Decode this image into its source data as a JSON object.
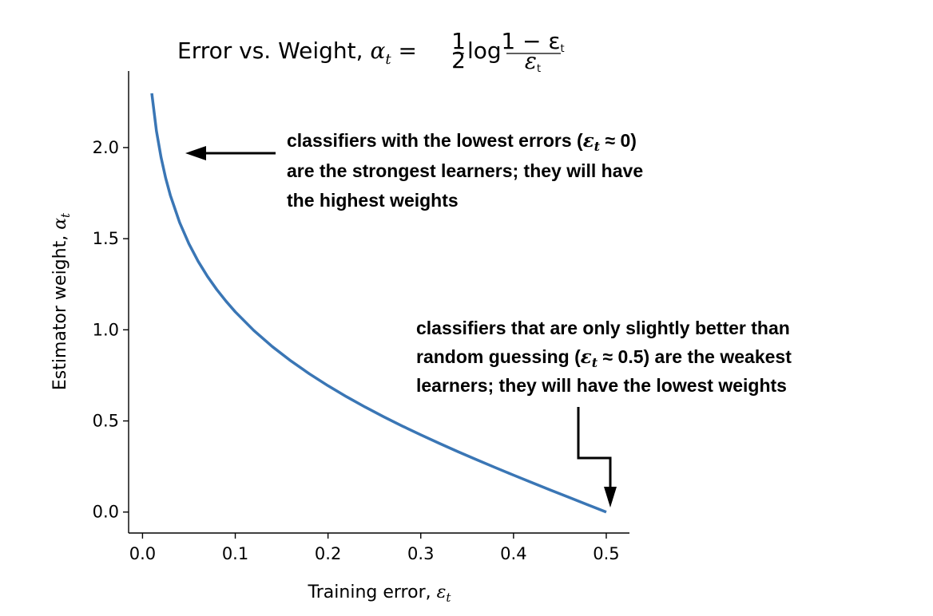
{
  "chart_data": {
    "type": "line",
    "title": {
      "prefix": "Error vs. Weight, ",
      "lhs_symbol": "α",
      "lhs_sub": "t",
      "equals": " = ",
      "half_num": "1",
      "half_den": "2",
      "log": "log",
      "frac_num": "1 − ε",
      "frac_num_sub": "t",
      "frac_den": "ε",
      "frac_den_sub": "t"
    },
    "xlabel": {
      "text": "Training error, ",
      "symbol": "ε",
      "sub": "t"
    },
    "ylabel": {
      "text": "Estimator weight, ",
      "symbol": "α",
      "sub": "t"
    },
    "xlim": [
      -0.015,
      0.525
    ],
    "ylim": [
      -0.115,
      2.42
    ],
    "xticks": [
      "0.0",
      "0.1",
      "0.2",
      "0.3",
      "0.4",
      "0.5"
    ],
    "yticks": [
      "0.0",
      "0.5",
      "1.0",
      "1.5",
      "2.0"
    ],
    "grid": false,
    "line_color": "#3a76b5",
    "series": [
      {
        "x": [
          0.01,
          0.015,
          0.02,
          0.025,
          0.03,
          0.04,
          0.05,
          0.06,
          0.07,
          0.08,
          0.09,
          0.1,
          0.12,
          0.14,
          0.16,
          0.18,
          0.2,
          0.22,
          0.24,
          0.26,
          0.28,
          0.3,
          0.32,
          0.34,
          0.36,
          0.38,
          0.4,
          0.42,
          0.44,
          0.46,
          0.48,
          0.5
        ],
        "y": [
          2.2976,
          2.0914,
          1.9459,
          1.8318,
          1.738,
          1.589,
          1.4722,
          1.3757,
          1.2932,
          1.2212,
          1.1571,
          1.0986,
          0.9962,
          0.9076,
          0.8291,
          0.7581,
          0.6931,
          0.6328,
          0.5763,
          0.523,
          0.4722,
          0.4236,
          0.3769,
          0.3316,
          0.2877,
          0.2448,
          0.2027,
          0.1614,
          0.1206,
          0.0802,
          0.04,
          0.0
        ]
      }
    ],
    "annotations": [
      {
        "lines": [
          [
            "classifiers with the lowest errors (",
            "ε",
            "t",
            " ≈ 0)"
          ],
          [
            "are the strongest learners; they will have"
          ],
          [
            "the highest weights"
          ]
        ]
      },
      {
        "lines": [
          [
            "classifiers that are only slightly better than"
          ],
          [
            "random guessing (",
            "ε",
            "t",
            " ≈ 0.5) are the weakest"
          ],
          [
            "learners; they will have the lowest weights"
          ]
        ]
      }
    ]
  }
}
